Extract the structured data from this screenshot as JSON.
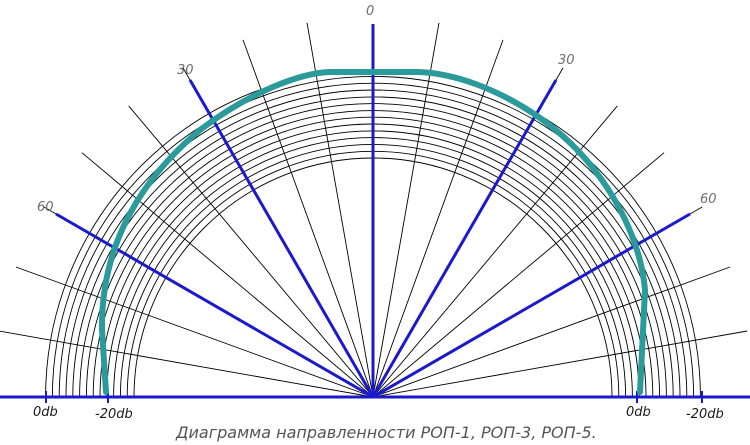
{
  "caption": "Диаграмма направленности РОП-1,  РОП-3, РОП-5.",
  "angle_labels": {
    "a0": "0",
    "left30": "30",
    "right30": "30",
    "left60": "60",
    "right60": "60"
  },
  "db_labels": {
    "left_0db": "0db",
    "left_minus20db": "-20db",
    "right_0db": "0db",
    "right_minus20db": "-20db"
  },
  "colors": {
    "axis": "#1a1acc",
    "curve": "#2a9a9a",
    "grid": "#000000",
    "angle_text": "#6e6e6e"
  }
}
